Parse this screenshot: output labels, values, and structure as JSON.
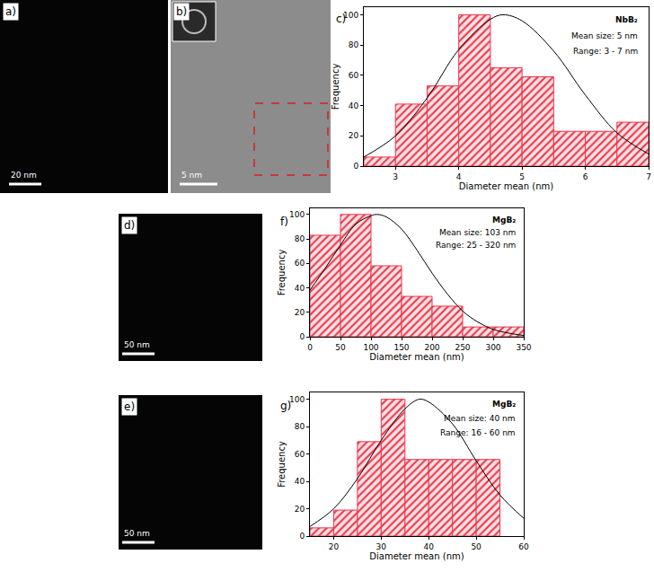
{
  "chart_data": [
    {
      "type": "histogram",
      "label": "c)",
      "x_label": "Diameter mean (nm)",
      "y_label": "Frequency",
      "annotations": [
        "NbB₂",
        "Mean size: 5 nm",
        "Range: 3 - 7 nm"
      ],
      "bins": [
        2.5,
        3,
        3.5,
        4,
        4.5,
        5,
        5.5,
        6,
        6.5,
        7
      ],
      "series": [
        {
          "type": "bar",
          "color": "#e8374a",
          "values": [
            6,
            41,
            53,
            100,
            65,
            59,
            23,
            23,
            29
          ]
        },
        {
          "type": "line",
          "color": "#000000",
          "x": [
            2.5,
            3,
            3.5,
            4,
            4.5,
            4.7,
            5,
            5.5,
            6,
            6.5,
            7
          ],
          "values": [
            6,
            20,
            45,
            77,
            97,
            100,
            96,
            76,
            47,
            22,
            8
          ]
        }
      ],
      "xlim": [
        2.5,
        7
      ],
      "xticks": [
        3,
        4,
        5,
        6,
        7
      ],
      "ylim": [
        0,
        105
      ],
      "yticks": [
        0,
        20,
        40,
        60,
        80,
        100
      ],
      "grid": false
    },
    {
      "type": "histogram",
      "label": "f)",
      "x_label": "Diameter mean (nm)",
      "y_label": "Frequency",
      "annotations": [
        "MgB₂",
        "Mean size: 103 nm",
        "Range: 25 - 320 nm"
      ],
      "bins": [
        0,
        50,
        100,
        150,
        200,
        250,
        300,
        350
      ],
      "series": [
        {
          "type": "bar",
          "color": "#e8374a",
          "values": [
            83,
            100,
            58,
            33,
            25,
            8,
            8
          ]
        },
        {
          "type": "line",
          "color": "#000000",
          "x": [
            0,
            25,
            50,
            75,
            100,
            110,
            125,
            150,
            175,
            200,
            225,
            250,
            275,
            300,
            325,
            350
          ],
          "values": [
            38,
            56,
            75,
            92,
            99,
            100,
            98,
            88,
            71,
            52,
            35,
            21,
            12,
            6,
            3,
            1
          ]
        }
      ],
      "xlim": [
        0,
        350
      ],
      "xticks": [
        0,
        50,
        100,
        150,
        200,
        250,
        300,
        350
      ],
      "ylim": [
        0,
        105
      ],
      "yticks": [
        0,
        20,
        40,
        60,
        80,
        100
      ],
      "grid": false
    },
    {
      "type": "histogram",
      "label": "g)",
      "x_label": "Diameter mean (nm)",
      "y_label": "Frequency",
      "annotations": [
        "MgB₂",
        "Mean size: 40 nm",
        "Range: 16 - 60 nm"
      ],
      "bins": [
        15,
        20,
        25,
        30,
        35,
        40,
        45,
        50,
        55
      ],
      "series": [
        {
          "type": "bar",
          "color": "#e8374a",
          "values": [
            6,
            19,
            69,
            100,
            56,
            56,
            56,
            56
          ]
        },
        {
          "type": "line",
          "color": "#000000",
          "x": [
            15,
            20,
            25,
            30,
            35,
            38,
            40,
            45,
            50,
            55,
            60
          ],
          "values": [
            7,
            20,
            42,
            70,
            93,
            100,
            98,
            82,
            55,
            30,
            13
          ]
        }
      ],
      "xlim": [
        15,
        60
      ],
      "xticks": [
        20,
        30,
        40,
        50,
        60
      ],
      "ylim": [
        0,
        105
      ],
      "yticks": [
        0,
        20,
        40,
        60,
        80,
        100
      ],
      "grid": false
    }
  ],
  "images": [
    {
      "label": "a)",
      "scale_bar": "20 nm"
    },
    {
      "label": "b)",
      "scale_bar": "5 nm"
    },
    {
      "label": "d)",
      "scale_bar": "50 nm"
    },
    {
      "label": "e)",
      "scale_bar": "50 nm"
    }
  ]
}
